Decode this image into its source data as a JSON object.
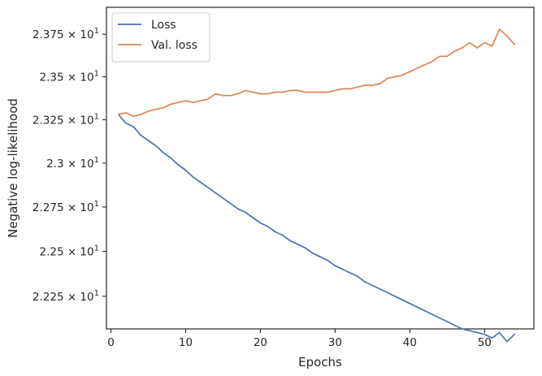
{
  "chart_data": {
    "type": "line",
    "title": "",
    "xlabel": "Epochs",
    "ylabel": "Negative log-likelihood",
    "yscale": "log",
    "xlim": [
      -0.6,
      56.6
    ],
    "ylim": [
      22.07,
      23.91
    ],
    "grid": false,
    "legend": "top-left",
    "xticks": [
      0,
      10,
      20,
      30,
      40,
      50
    ],
    "xtick_labels": [
      "0",
      "10",
      "20",
      "30",
      "40",
      "50"
    ],
    "yticks": [
      22.25,
      22.5,
      22.75,
      23.0,
      23.25,
      23.5,
      23.75
    ],
    "ytick_labels": [
      {
        "mantissa": "2.225",
        "exp": "1"
      },
      {
        "mantissa": "2.25",
        "exp": "1"
      },
      {
        "mantissa": "2.275",
        "exp": "1"
      },
      {
        "mantissa": "2.3",
        "exp": "1"
      },
      {
        "mantissa": "2.325",
        "exp": "1"
      },
      {
        "mantissa": "2.35",
        "exp": "1"
      },
      {
        "mantissa": "2.375",
        "exp": "1"
      }
    ],
    "x": [
      1,
      2,
      3,
      4,
      5,
      6,
      7,
      8,
      9,
      10,
      11,
      12,
      13,
      14,
      15,
      16,
      17,
      18,
      19,
      20,
      21,
      22,
      23,
      24,
      25,
      26,
      27,
      28,
      29,
      30,
      31,
      32,
      33,
      34,
      35,
      36,
      37,
      38,
      39,
      40,
      41,
      42,
      43,
      44,
      45,
      46,
      47,
      48,
      49,
      50,
      51,
      52,
      53,
      54
    ],
    "series": [
      {
        "name": "Loss",
        "color": "#4c72b0",
        "values": [
          23.28,
          23.23,
          23.21,
          23.16,
          23.13,
          23.1,
          23.06,
          23.03,
          22.99,
          22.96,
          22.92,
          22.89,
          22.86,
          22.83,
          22.8,
          22.77,
          22.74,
          22.72,
          22.69,
          22.66,
          22.64,
          22.61,
          22.59,
          22.56,
          22.54,
          22.52,
          22.49,
          22.47,
          22.45,
          22.42,
          22.4,
          22.38,
          22.36,
          22.33,
          22.31,
          22.29,
          22.27,
          22.25,
          22.23,
          22.21,
          22.19,
          22.17,
          22.15,
          22.13,
          22.11,
          22.09,
          22.07,
          22.06,
          22.05,
          22.04,
          22.02,
          22.05,
          22.0,
          22.04
        ]
      },
      {
        "name": "Val. loss",
        "color": "#dd8452",
        "values": [
          23.28,
          23.29,
          23.27,
          23.28,
          23.3,
          23.31,
          23.32,
          23.34,
          23.35,
          23.36,
          23.35,
          23.36,
          23.37,
          23.4,
          23.39,
          23.39,
          23.4,
          23.42,
          23.41,
          23.4,
          23.4,
          23.41,
          23.41,
          23.42,
          23.42,
          23.41,
          23.41,
          23.41,
          23.41,
          23.42,
          23.43,
          23.43,
          23.44,
          23.45,
          23.45,
          23.46,
          23.49,
          23.5,
          23.51,
          23.53,
          23.55,
          23.57,
          23.59,
          23.62,
          23.62,
          23.65,
          23.67,
          23.7,
          23.67,
          23.7,
          23.68,
          23.78,
          23.74,
          23.69
        ]
      }
    ]
  }
}
